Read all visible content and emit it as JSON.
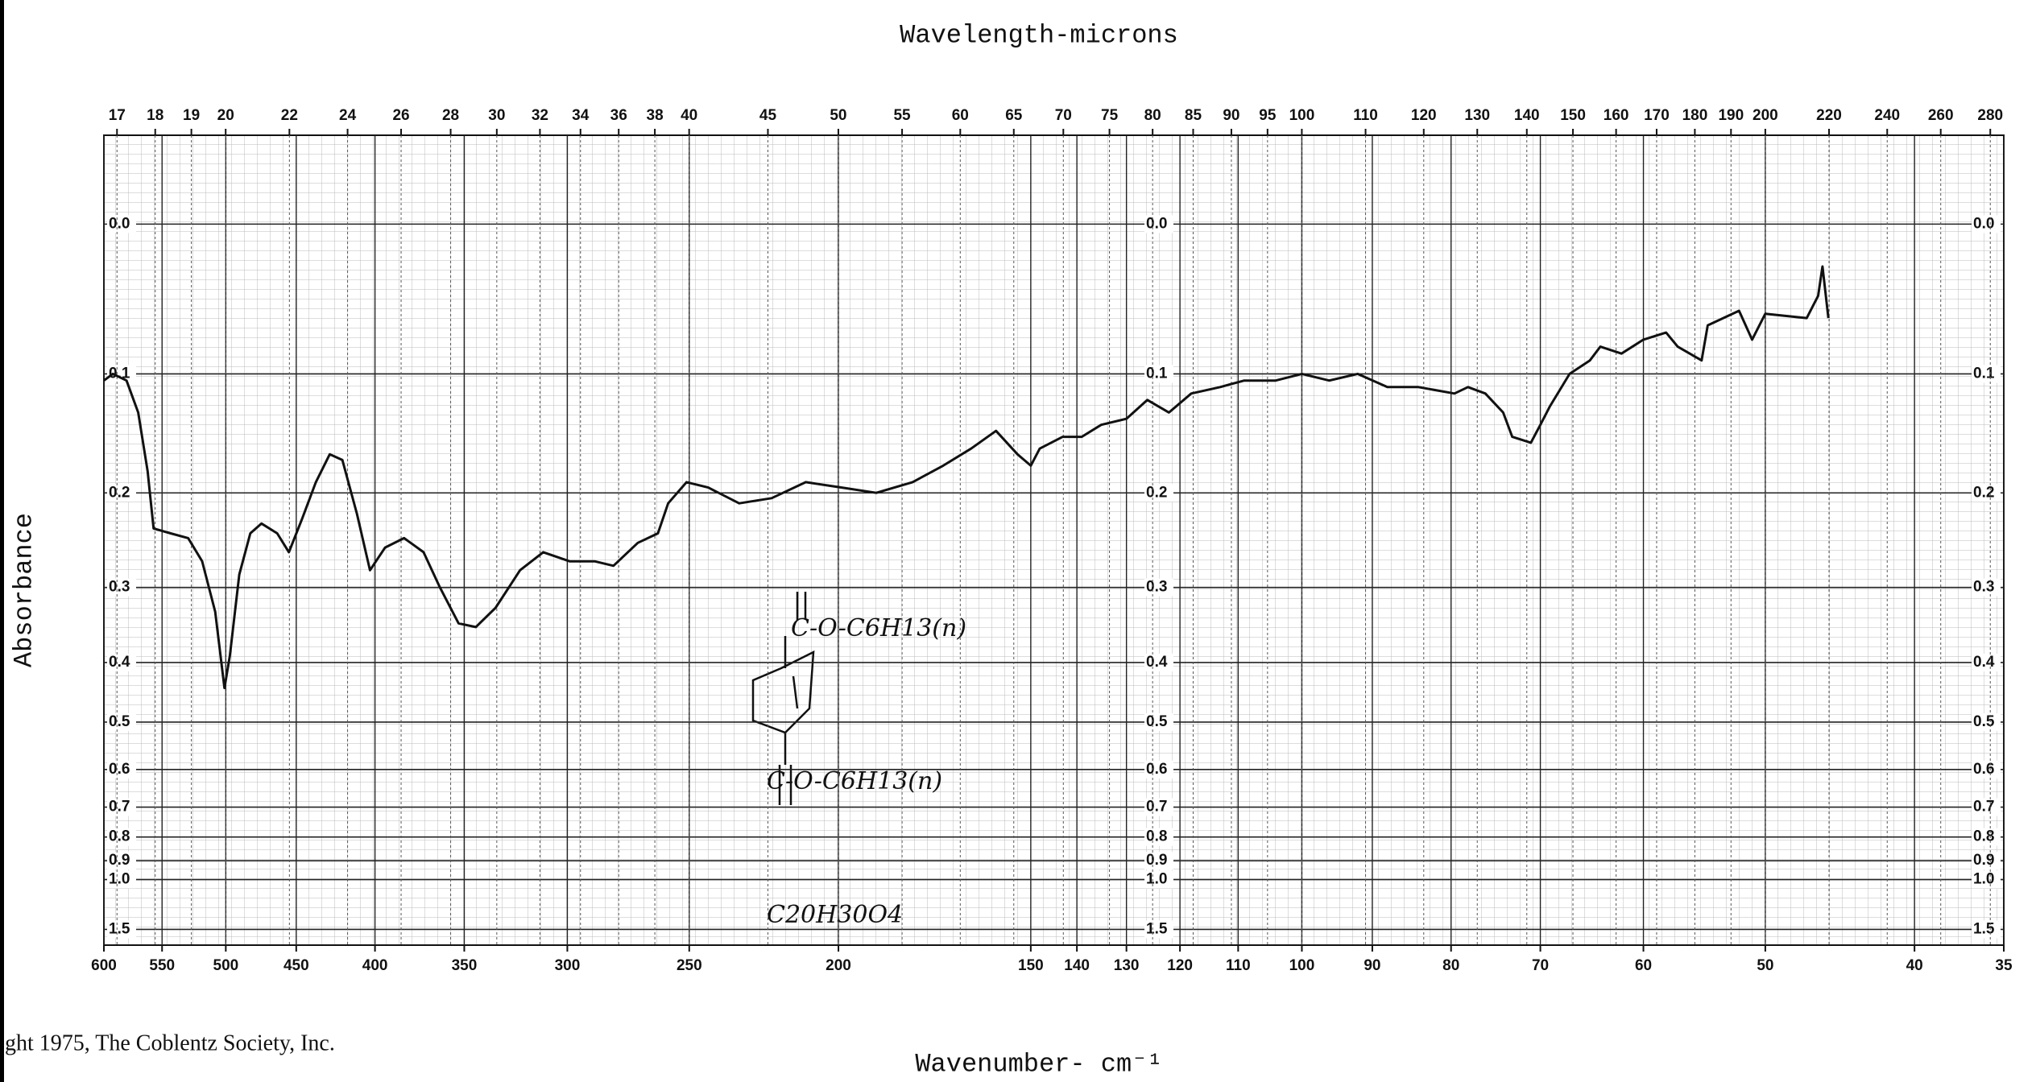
{
  "chart_data": {
    "type": "line",
    "title": "Wavelength-microns",
    "x_label": "Wavenumber- cm⁻¹",
    "y_label": "Absorbance",
    "copyright": "ght 1975, The Coblentz Society, Inc.",
    "annotations": [
      "C-O-C6H13(n)",
      "C-O-C6H13(n)",
      "C20H30O4"
    ],
    "xscale": "log",
    "grid": true,
    "color": "#111111",
    "xlim": [
      600,
      35
    ],
    "xticks": [
      600,
      550,
      500,
      450,
      400,
      350,
      300,
      250,
      200,
      150,
      140,
      130,
      120,
      110,
      100,
      90,
      80,
      70,
      60,
      50,
      40,
      35
    ],
    "x2lim": [
      16.67,
      285.71
    ],
    "x2ticks": [
      17,
      18,
      19,
      20,
      22,
      24,
      26,
      28,
      30,
      32,
      34,
      36,
      38,
      40,
      45,
      50,
      55,
      60,
      65,
      70,
      75,
      80,
      85,
      90,
      95,
      100,
      110,
      120,
      130,
      140,
      150,
      160,
      170,
      180,
      190,
      200,
      220,
      240,
      260,
      280
    ],
    "ylim": [
      -0.05,
      2
    ],
    "yticks": [
      {
        "value": 0,
        "label": "0.0"
      },
      0.1,
      0.2,
      0.3,
      0.4,
      0.5,
      0.6,
      0.7,
      0.8,
      0.9,
      {
        "value": 1,
        "label": "1.0"
      },
      1.5
    ],
    "x": [
      600,
      592,
      580,
      570,
      562,
      557,
      543,
      529,
      518,
      508,
      501,
      497,
      490,
      482,
      474,
      463,
      455,
      446,
      437,
      428,
      420,
      411,
      403,
      394,
      383,
      372,
      363,
      353,
      344,
      334,
      322,
      311,
      299,
      288,
      280,
      270,
      262,
      258,
      251,
      243,
      232,
      221,
      210,
      199,
      189,
      179,
      171,
      164,
      158,
      153,
      150,
      148,
      143,
      139,
      135,
      130,
      126,
      122,
      118,
      113,
      109,
      104,
      100,
      96,
      92,
      88,
      84,
      79.6,
      78,
      76,
      74,
      73,
      71,
      70,
      69,
      67,
      65,
      64,
      62,
      60,
      58,
      57,
      55,
      54.5,
      52,
      51,
      50,
      47,
      46.2,
      45.9,
      45.5
    ],
    "values": [
      0.105,
      0.1,
      0.105,
      0.13,
      0.18,
      0.235,
      0.24,
      0.245,
      0.27,
      0.33,
      0.44,
      0.39,
      0.285,
      0.24,
      0.23,
      0.24,
      0.26,
      0.225,
      0.19,
      0.165,
      0.17,
      0.22,
      0.28,
      0.255,
      0.245,
      0.26,
      0.3,
      0.345,
      0.35,
      0.325,
      0.28,
      0.26,
      0.27,
      0.27,
      0.275,
      0.25,
      0.24,
      0.21,
      0.19,
      0.195,
      0.21,
      0.205,
      0.19,
      0.195,
      0.2,
      0.19,
      0.175,
      0.16,
      0.145,
      0.165,
      0.175,
      0.16,
      0.15,
      0.15,
      0.14,
      0.135,
      0.12,
      0.13,
      0.115,
      0.11,
      0.105,
      0.105,
      0.1,
      0.105,
      0.1,
      0.11,
      0.11,
      0.115,
      0.11,
      0.115,
      0.13,
      0.15,
      0.155,
      0.14,
      0.125,
      0.1,
      0.09,
      0.08,
      0.085,
      0.075,
      0.07,
      0.08,
      0.09,
      0.065,
      0.055,
      0.075,
      0.057,
      0.06,
      0.045,
      0.026,
      0.06
    ]
  }
}
